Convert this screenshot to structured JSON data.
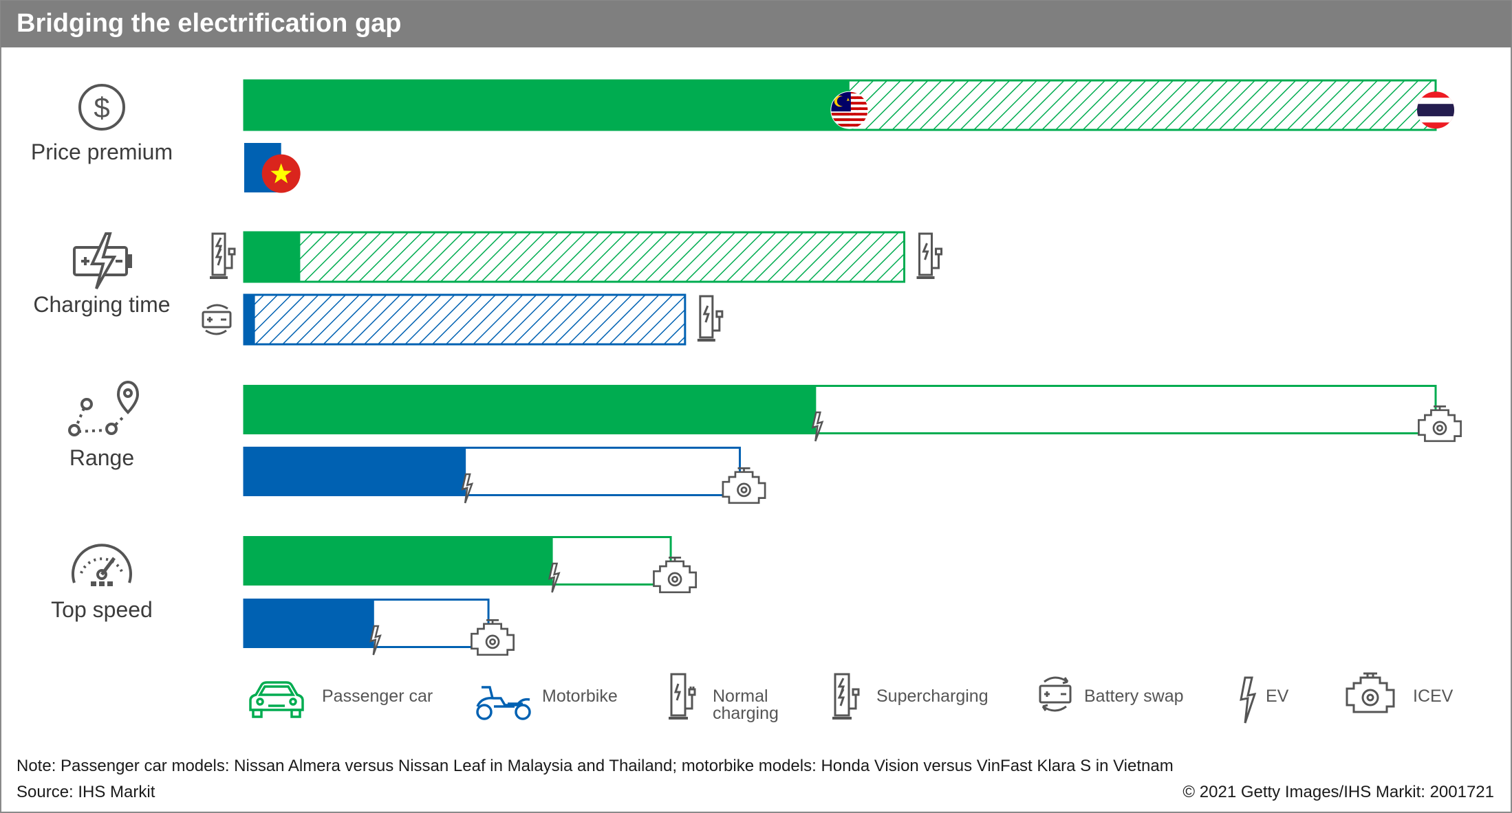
{
  "title": "Bridging the electrification gap",
  "colors": {
    "passenger_car": "#00AC50",
    "motorbike": "#0061B2",
    "header_bg": "#7F7F7F",
    "icon_gray": "#555555",
    "malaysia_blue": "#010066",
    "malaysia_red": "#CC0001",
    "thailand_red": "#ED1C24",
    "thailand_blue": "#241D4F",
    "vietnam_red": "#DA251D",
    "vietnam_star": "#FFFF00"
  },
  "row_labels": {
    "price": "Price premium",
    "charging": "Charging time",
    "range": "Range",
    "speed": "Top speed"
  },
  "row_icons": {
    "price": "dollar-icon",
    "charging": "battery-charge-icon",
    "range": "route-pin-icon",
    "speed": "speedometer-icon"
  },
  "chart_data": {
    "type": "bar",
    "orientation": "horizontal",
    "units": "relative bar length (no axis printed)",
    "rows": [
      {
        "metric": "Price premium",
        "bars": [
          {
            "series": "Passenger car",
            "values": [
              {
                "country": "Malaysia",
                "value": 50.8,
                "style": "solid"
              },
              {
                "country": "Thailand",
                "value": 100,
                "style": "hatched"
              }
            ]
          },
          {
            "series": "Motorbike",
            "values": [
              {
                "country": "Vietnam",
                "value": 3.1,
                "style": "solid"
              }
            ]
          }
        ]
      },
      {
        "metric": "Charging time",
        "bars": [
          {
            "series": "Passenger car",
            "values": [
              {
                "mode": "Supercharging",
                "value": 4.7,
                "style": "solid"
              },
              {
                "mode": "Normal charging",
                "value": 55.4,
                "style": "hatched"
              }
            ],
            "start_marker": "Supercharging",
            "end_marker": "Normal charging"
          },
          {
            "series": "Motorbike",
            "values": [
              {
                "mode": "Battery swap",
                "value": 0.9,
                "style": "solid"
              },
              {
                "mode": "Normal charging",
                "value": 37.0,
                "style": "hatched"
              }
            ],
            "start_marker": "Battery swap",
            "end_marker": "Normal charging"
          }
        ]
      },
      {
        "metric": "Range",
        "bars": [
          {
            "series": "Passenger car",
            "ev": 48.0,
            "icev": 100
          },
          {
            "series": "Motorbike",
            "ev": 18.6,
            "icev": 41.6
          }
        ]
      },
      {
        "metric": "Top speed",
        "bars": [
          {
            "series": "Passenger car",
            "ev": 25.9,
            "icev": 35.8
          },
          {
            "series": "Motorbike",
            "ev": 10.9,
            "icev": 20.5
          }
        ]
      }
    ],
    "legend": [
      {
        "label": "Passenger car",
        "icon": "car-icon",
        "color": "#00AC50"
      },
      {
        "label": "Motorbike",
        "icon": "motorbike-icon",
        "color": "#0061B2"
      },
      {
        "label": [
          "Normal",
          "charging"
        ],
        "icon": "normal-charger-icon"
      },
      {
        "label": "Supercharging",
        "icon": "supercharger-icon"
      },
      {
        "label": "Battery swap",
        "icon": "battery-swap-icon"
      },
      {
        "label": "EV",
        "icon": "lightning-icon"
      },
      {
        "label": "ICEV",
        "icon": "engine-icon"
      }
    ],
    "markers": {
      "Malaysia": "malaysia-flag-icon",
      "Thailand": "thailand-flag-icon",
      "Vietnam": "vietnam-flag-icon"
    }
  },
  "note": "Note: Passenger car models: Nissan Almera versus Nissan Leaf in Malaysia and Thailand; motorbike models: Honda Vision versus VinFast Klara S in Vietnam",
  "source": "Source: IHS Markit",
  "copyright": "© 2021 Getty Images/IHS Markit: 2001721"
}
